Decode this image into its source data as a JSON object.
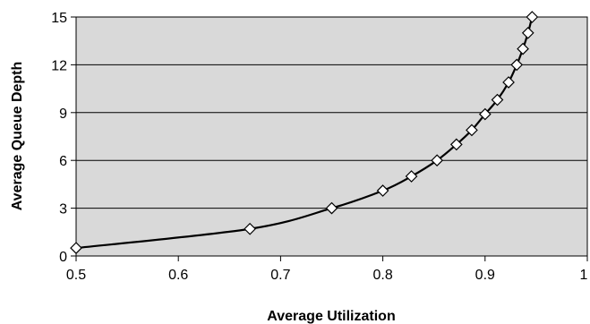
{
  "chart_data": {
    "type": "line",
    "title": "",
    "xlabel": "Average Utilization",
    "ylabel": "Average Queue Depth",
    "xlim": [
      0.5,
      1
    ],
    "ylim": [
      0,
      15
    ],
    "x_ticks": [
      0.5,
      0.6,
      0.7,
      0.8,
      0.9,
      1
    ],
    "x_tick_labels": [
      "0.5",
      "0.6",
      "0.7",
      "0.8",
      "0.9",
      "1"
    ],
    "y_ticks": [
      0,
      3,
      6,
      9,
      12,
      15
    ],
    "y_tick_labels": [
      "0",
      "3",
      "6",
      "9",
      "12",
      "15"
    ],
    "grid": "horizontal",
    "legend": "none",
    "marker": "diamond",
    "colors": {
      "plot_background": "#d9d9d9",
      "line": "#000000",
      "marker_fill": "#ffffff",
      "marker_stroke": "#000000",
      "grid": "#000000"
    },
    "series": [
      {
        "x": [
          0.5,
          0.67,
          0.75,
          0.8,
          0.828,
          0.853,
          0.872,
          0.887,
          0.9,
          0.912,
          0.923,
          0.931,
          0.937,
          0.942,
          0.946
        ],
        "values": [
          0.5,
          1.7,
          3.0,
          4.1,
          5.0,
          6.0,
          7.0,
          7.9,
          8.9,
          9.8,
          10.9,
          12.0,
          13.0,
          14.0,
          15.0
        ]
      }
    ]
  }
}
